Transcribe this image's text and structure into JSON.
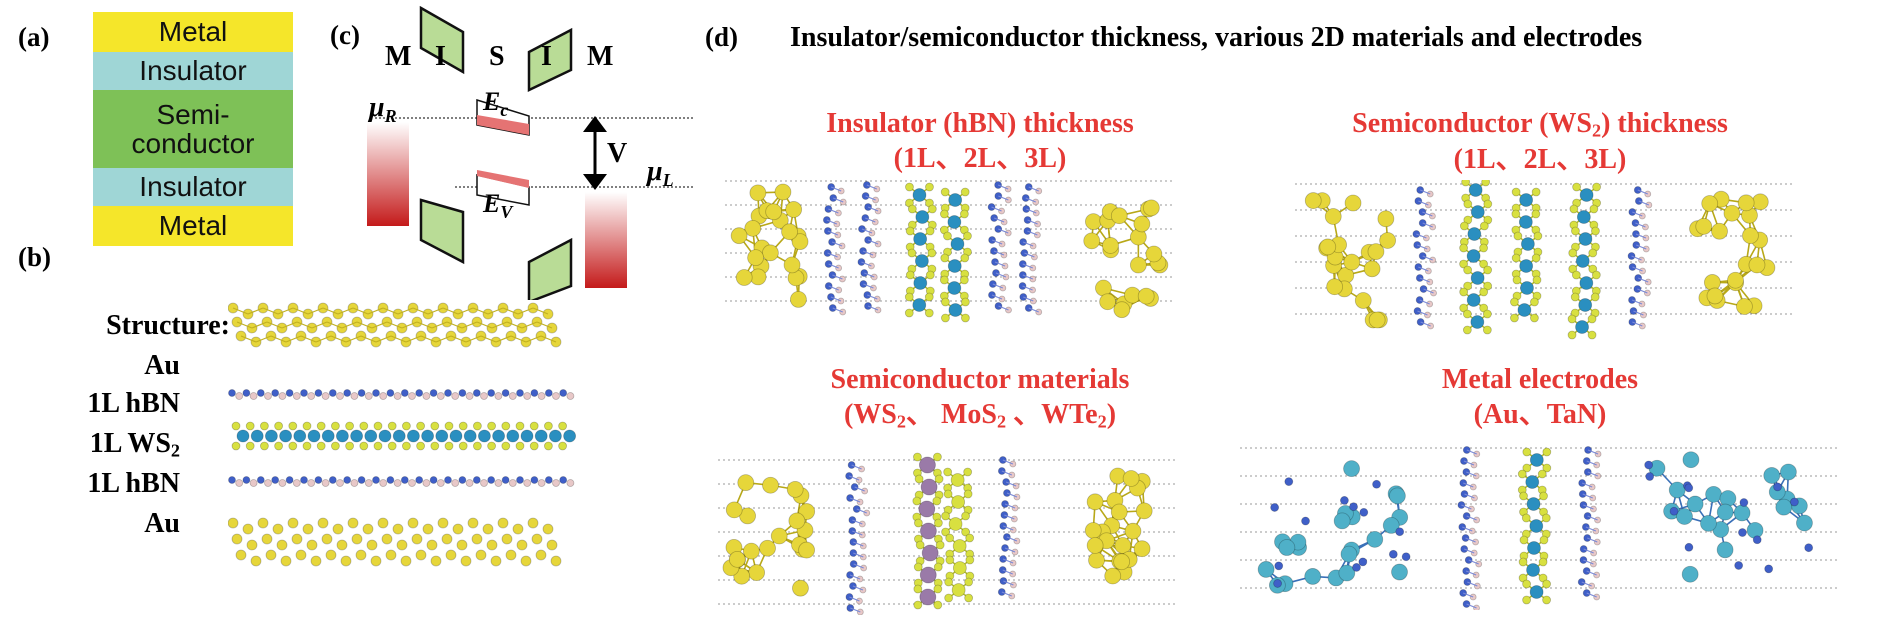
{
  "panel_labels": {
    "a": "(a)",
    "b": "(b)",
    "c": "(c)",
    "d": "(d)"
  },
  "panel_a": {
    "layers": [
      {
        "label": "Metal",
        "color": "#f5e62a"
      },
      {
        "label": "Insulator",
        "color": "#9fd6d6"
      },
      {
        "label": "Semi-\nconductor",
        "color": "#7ec157"
      },
      {
        "label": "Insulator",
        "color": "#9fd6d6"
      },
      {
        "label": "Metal",
        "color": "#f5e62a"
      }
    ]
  },
  "panel_b": {
    "lines": [
      "Structure:",
      "Au",
      "1L hBN",
      "1L WS",
      "1L hBN",
      "Au"
    ],
    "ws_subscript": "2"
  },
  "panel_c": {
    "letters": [
      "M",
      "I",
      "S",
      "I",
      "M"
    ],
    "mu_R": "μ",
    "mu_R_sub": "R",
    "mu_L": "μ",
    "mu_L_sub": "L",
    "Ec": "E",
    "Ec_sub": "c",
    "Ev": "E",
    "Ev_sub": "V",
    "bias": "V"
  },
  "panel_d": {
    "title": "Insulator/semiconductor thickness, various 2D materials and electrodes",
    "q1_line1": "Insulator (hBN) thickness",
    "q1_line2": "(1L、2L、3L)",
    "q2_line1a": "Semiconductor (WS",
    "q2_sub": "2",
    "q2_line1b": ") thickness",
    "q2_line2": "(1L、2L、3L)",
    "q3_line1": "Semiconductor materials",
    "q3_line2_a": "(WS",
    "q3_sub1": "2",
    "q3_line2_b": "、 MoS",
    "q3_sub2": "2",
    "q3_line2_c": " 、WTe",
    "q3_sub3": "2",
    "q3_line2_d": ")",
    "q4_line1": "Metal electrodes",
    "q4_line2": "(Au、TaN)"
  },
  "colors": {
    "au": "#e6d63a",
    "au_stroke": "#a89a10",
    "n": "#3f5fc8",
    "b": "#e8c8c8",
    "w": "#2a8fc0",
    "s": "#d8e040",
    "mo": "#9a7aa8",
    "ta": "#4fb0c8",
    "red": "#e53935"
  }
}
